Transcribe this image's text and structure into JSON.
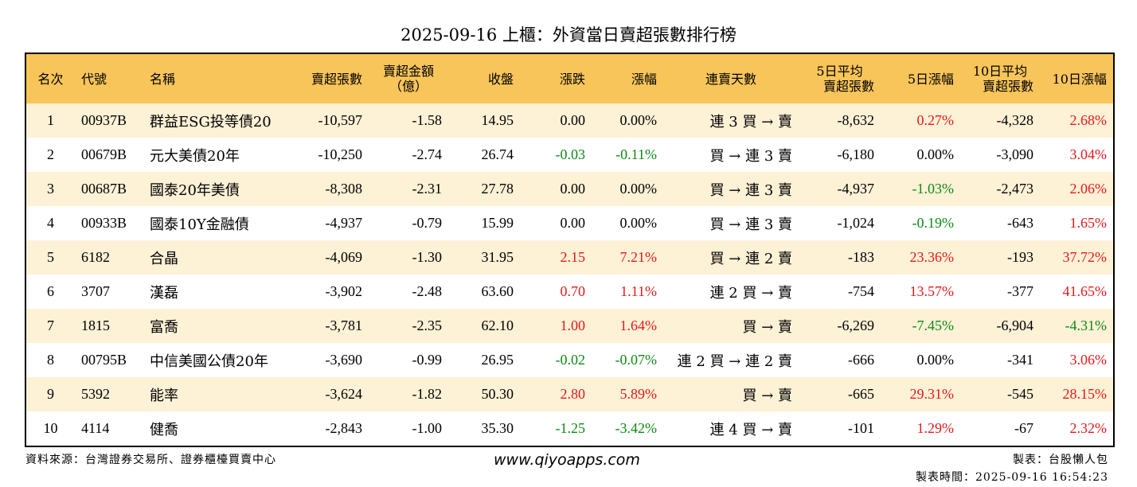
{
  "title": "2025-09-16 上櫃：外資當日賣超張數排行榜",
  "headers": {
    "rank": "名次",
    "code": "代號",
    "name": "名稱",
    "sell_qty": "賣超張數",
    "sell_amt_1": "賣超金額",
    "sell_amt_2": "（億）",
    "close": "收盤",
    "change": "漲跌",
    "change_pct": "漲幅",
    "days": "連賣天數",
    "avg5_1": "5日平均",
    "avg5_2": "賣超張數",
    "pct5": "5日漲幅",
    "avg10_1": "10日平均",
    "avg10_2": "賣超張數",
    "pct10": "10日漲幅"
  },
  "rows": [
    {
      "rank": "1",
      "code": "00937B",
      "name": "群益ESG投等債20",
      "sell_qty": "-10,597",
      "sell_amt": "-1.58",
      "close": "14.95",
      "change": "0.00",
      "change_pct": "0.00%",
      "days": "連 3 買 → 賣",
      "avg5": "-8,632",
      "pct5": "0.27%",
      "avg10": "-4,328",
      "pct10": "2.68%"
    },
    {
      "rank": "2",
      "code": "00679B",
      "name": "元大美債20年",
      "sell_qty": "-10,250",
      "sell_amt": "-2.74",
      "close": "26.74",
      "change": "-0.03",
      "change_pct": "-0.11%",
      "days": "買 → 連 3 賣",
      "avg5": "-6,180",
      "pct5": "0.00%",
      "avg10": "-3,090",
      "pct10": "3.04%"
    },
    {
      "rank": "3",
      "code": "00687B",
      "name": "國泰20年美債",
      "sell_qty": "-8,308",
      "sell_amt": "-2.31",
      "close": "27.78",
      "change": "0.00",
      "change_pct": "0.00%",
      "days": "買 → 連 3 賣",
      "avg5": "-4,937",
      "pct5": "-1.03%",
      "avg10": "-2,473",
      "pct10": "2.06%"
    },
    {
      "rank": "4",
      "code": "00933B",
      "name": "國泰10Y金融債",
      "sell_qty": "-4,937",
      "sell_amt": "-0.79",
      "close": "15.99",
      "change": "0.00",
      "change_pct": "0.00%",
      "days": "買 → 連 3 賣",
      "avg5": "-1,024",
      "pct5": "-0.19%",
      "avg10": "-643",
      "pct10": "1.65%"
    },
    {
      "rank": "5",
      "code": "6182",
      "name": "合晶",
      "sell_qty": "-4,069",
      "sell_amt": "-1.30",
      "close": "31.95",
      "change": "2.15",
      "change_pct": "7.21%",
      "days": "買 → 連 2 賣",
      "avg5": "-183",
      "pct5": "23.36%",
      "avg10": "-193",
      "pct10": "37.72%"
    },
    {
      "rank": "6",
      "code": "3707",
      "name": "漢磊",
      "sell_qty": "-3,902",
      "sell_amt": "-2.48",
      "close": "63.60",
      "change": "0.70",
      "change_pct": "1.11%",
      "days": "連 2 買 → 賣",
      "avg5": "-754",
      "pct5": "13.57%",
      "avg10": "-377",
      "pct10": "41.65%"
    },
    {
      "rank": "7",
      "code": "1815",
      "name": "富喬",
      "sell_qty": "-3,781",
      "sell_amt": "-2.35",
      "close": "62.10",
      "change": "1.00",
      "change_pct": "1.64%",
      "days": "買 → 賣",
      "avg5": "-6,269",
      "pct5": "-7.45%",
      "avg10": "-6,904",
      "pct10": "-4.31%"
    },
    {
      "rank": "8",
      "code": "00795B",
      "name": "中信美國公債20年",
      "sell_qty": "-3,690",
      "sell_amt": "-0.99",
      "close": "26.95",
      "change": "-0.02",
      "change_pct": "-0.07%",
      "days": "連 2 買 → 連 2 賣",
      "avg5": "-666",
      "pct5": "0.00%",
      "avg10": "-341",
      "pct10": "3.06%"
    },
    {
      "rank": "9",
      "code": "5392",
      "name": "能率",
      "sell_qty": "-3,624",
      "sell_amt": "-1.82",
      "close": "50.30",
      "change": "2.80",
      "change_pct": "5.89%",
      "days": "買 → 賣",
      "avg5": "-665",
      "pct5": "29.31%",
      "avg10": "-545",
      "pct10": "28.15%"
    },
    {
      "rank": "10",
      "code": "4114",
      "name": "健喬",
      "sell_qty": "-2,843",
      "sell_amt": "-1.00",
      "close": "35.30",
      "change": "-1.25",
      "change_pct": "-3.42%",
      "days": "連 4 買 → 賣",
      "avg5": "-101",
      "pct5": "1.29%",
      "avg10": "-67",
      "pct10": "2.32%"
    }
  ],
  "footer": {
    "source": "資料來源：台灣證券交易所、證券櫃檯買賣中心",
    "website": "www.qiyoapps.com",
    "maker": "製表：台股懶人包",
    "made_time": "製表時間：2025-09-16 16:54:23"
  },
  "colors": {
    "header_bg": "#f8c55a",
    "row_alt_bg": "#fdf1d6",
    "positive": "#e8181b",
    "negative": "#0e8a16"
  }
}
